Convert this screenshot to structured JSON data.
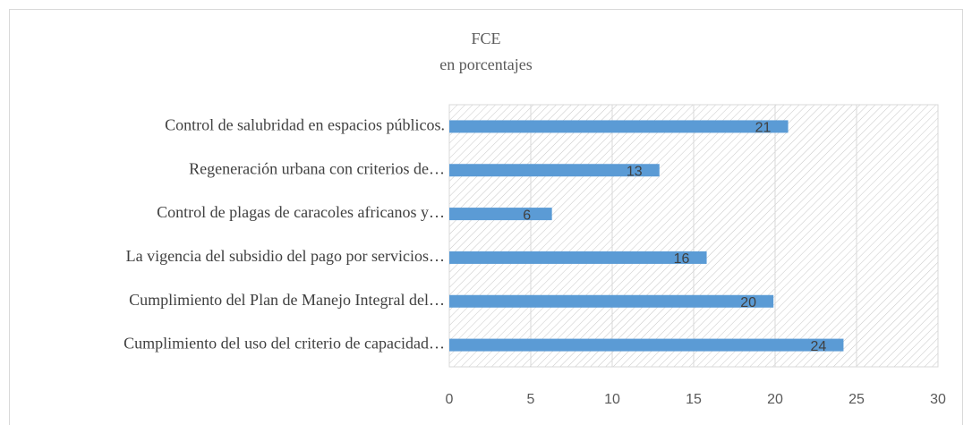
{
  "chart_data": {
    "type": "bar",
    "orientation": "horizontal",
    "title": "FCE",
    "subtitle": "en porcentajes",
    "categories": [
      "Control de salubridad en espacios públicos.",
      "Regeneración urbana con criterios de…",
      "Control de plagas de caracoles africanos y…",
      "La vigencia del subsidio del pago por servicios…",
      "Cumplimiento del Plan de Manejo Integral del…",
      "Cumplimiento del uso del criterio de capacidad…"
    ],
    "values": [
      20.8,
      12.9,
      6.3,
      15.8,
      19.9,
      24.2
    ],
    "value_labels": [
      "21",
      "13",
      "6",
      "16",
      "20",
      "24"
    ],
    "color": "#5b9bd5",
    "xlim": [
      0,
      30
    ],
    "xticks": [
      0,
      5,
      10,
      15,
      20,
      25,
      30
    ],
    "grid": true
  }
}
